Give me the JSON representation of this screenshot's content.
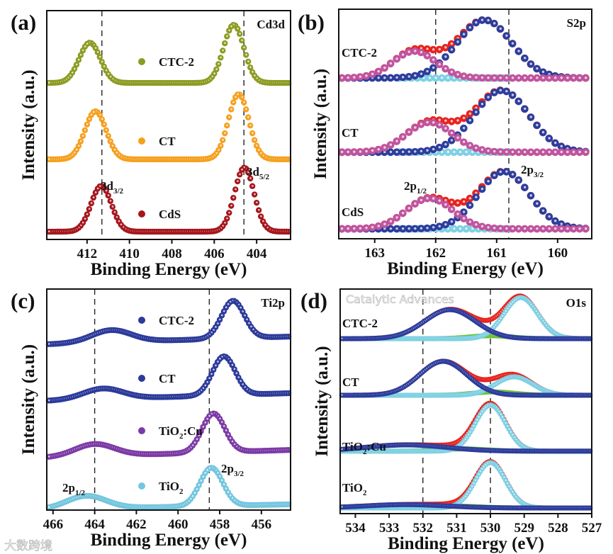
{
  "watermarks": {
    "left": "大数跨境",
    "right": "Catalytic Advances"
  },
  "chart_data": [
    {
      "panel": "(a)",
      "type": "scatter",
      "title": "Cd3d",
      "xlabel": "Binding Energy (eV)",
      "ylabel": "Intensity (a.u.)",
      "xlim": [
        413.9,
        402.4
      ],
      "ylim": [
        0,
        10
      ],
      "step": 0.1,
      "xticks": [
        412,
        410,
        408,
        406,
        404
      ],
      "reference_lines": [
        411.3,
        404.6
      ],
      "legend_style": "dot",
      "series": [
        {
          "label": {
            "main": "CTC-2"
          },
          "color": "#8c9c22",
          "offset": 6.84,
          "slope": 0.0,
          "peaks": [
            {
              "center": 411.87,
              "height": 1.76,
              "sigma": 0.5
            },
            {
              "center": 405.08,
              "height": 2.54,
              "sigma": 0.48
            }
          ]
        },
        {
          "label": {
            "main": "CT"
          },
          "color": "#f5a01e",
          "offset": 3.5,
          "slope": 0.0,
          "peaks": [
            {
              "center": 411.6,
              "height": 2.1,
              "sigma": 0.5
            },
            {
              "center": 404.85,
              "height": 2.85,
              "sigma": 0.48
            }
          ]
        },
        {
          "label": {
            "main": "CdS"
          },
          "color": "#a5161c",
          "offset": 0.34,
          "slope": 0.0,
          "peaks": [
            {
              "center": 411.33,
              "height": 2.0,
              "sigma": 0.48
            },
            {
              "center": 404.58,
              "height": 2.8,
              "sigma": 0.46
            }
          ]
        }
      ],
      "annotations": [
        {
          "main": "3d",
          "sub": "3/2"
        },
        {
          "main": "3d",
          "sub": "5/2"
        }
      ]
    },
    {
      "panel": "(b)",
      "type": "scatter",
      "title": "S2p",
      "xlabel": "Binding Energy (eV)",
      "ylabel": "Intensity (a.u.)",
      "xlim": [
        163.59,
        159.44
      ],
      "ylim": [
        0,
        10
      ],
      "step": 0.1,
      "xticks": [
        163,
        162,
        161,
        160
      ],
      "reference_lines": [
        162.0,
        160.8
      ],
      "legend_style": "inline",
      "envelope_color": "#e8231e",
      "background": {
        "color": "#7fd0e4",
        "range": [
          162.6,
          160.8
        ]
      },
      "series": [
        {
          "label": {
            "main": "CTC-2"
          },
          "offset": 7.0,
          "components": [
            {
              "color": "#2d3d9c",
              "center": 161.2,
              "height": 2.53,
              "sigma": 0.45
            },
            {
              "color": "#c0549e",
              "center": 162.35,
              "height": 1.17,
              "sigma": 0.35
            }
          ]
        },
        {
          "label": {
            "main": "CT"
          },
          "offset": 3.77,
          "components": [
            {
              "color": "#2d3d9c",
              "center": 160.92,
              "height": 2.69,
              "sigma": 0.45
            },
            {
              "color": "#c0549e",
              "center": 162.1,
              "height": 1.3,
              "sigma": 0.38
            }
          ]
        },
        {
          "label": {
            "main": "CdS"
          },
          "offset": 0.43,
          "components": [
            {
              "color": "#2d3d9c",
              "center": 160.88,
              "height": 2.5,
              "sigma": 0.42
            },
            {
              "color": "#c0549e",
              "center": 162.1,
              "height": 1.33,
              "sigma": 0.38
            }
          ]
        }
      ],
      "annotations": [
        {
          "main": "2p",
          "sub": "1/2"
        },
        {
          "main": "2p",
          "sub": "3/2"
        }
      ]
    },
    {
      "panel": "(c)",
      "type": "scatter",
      "title": "Ti2p",
      "xlabel": "Binding Energy (eV)",
      "ylabel": "Intensity (a.u.)",
      "xlim": [
        466.3,
        454.6
      ],
      "ylim": [
        0,
        10
      ],
      "step": 0.1,
      "xticks": [
        466,
        464,
        462,
        460,
        458,
        456
      ],
      "reference_lines": [
        464.0,
        458.5
      ],
      "legend_style": "dot",
      "series": [
        {
          "label": {
            "main": "CTC-2"
          },
          "color": "#2c3a9a",
          "offset": 7.85,
          "slope": -0.03,
          "peaks": [
            {
              "center": 463.2,
              "height": 0.55,
              "sigma": 0.95
            },
            {
              "center": 457.36,
              "height": 1.7,
              "sigma": 0.55
            }
          ]
        },
        {
          "label": {
            "main": "CT"
          },
          "color": "#2c3a9a",
          "offset": 5.29,
          "slope": -0.03,
          "peaks": [
            {
              "center": 463.6,
              "height": 0.48,
              "sigma": 0.95
            },
            {
              "center": 457.8,
              "height": 1.76,
              "sigma": 0.55
            }
          ]
        },
        {
          "label": {
            "main": "TiO",
            "sub": "2",
            "rest": ":Cu"
          },
          "color": "#7c3aa6",
          "offset": 2.72,
          "slope": -0.03,
          "peaks": [
            {
              "center": 464.0,
              "height": 0.55,
              "sigma": 0.95
            },
            {
              "center": 458.3,
              "height": 1.76,
              "sigma": 0.55
            }
          ]
        },
        {
          "label": {
            "main": "TiO",
            "sub": "2"
          },
          "color": "#74c6de",
          "offset": 0.26,
          "slope": -0.02,
          "peaks": [
            {
              "center": 464.4,
              "height": 0.58,
              "sigma": 0.95
            },
            {
              "center": 458.4,
              "height": 1.73,
              "sigma": 0.55
            }
          ]
        }
      ],
      "annotations": [
        {
          "main": "2p",
          "sub": "1/2"
        },
        {
          "main": "2p",
          "sub": "3/2"
        }
      ]
    },
    {
      "panel": "(d)",
      "type": "scatter",
      "title": "O1s",
      "xlabel": "Binding Energy (eV)",
      "ylabel": "Intensity (a.u.)",
      "xlim": [
        534.45,
        527.0
      ],
      "ylim": [
        0,
        10
      ],
      "step": 0.05,
      "xticks": [
        534,
        533,
        532,
        531,
        530,
        529,
        528,
        527
      ],
      "reference_lines": [
        532.0,
        530.0
      ],
      "legend_style": "inline",
      "envelope_color": "#e8231e",
      "series": [
        {
          "label": {
            "main": "CTC-2"
          },
          "offset": 7.79,
          "components": [
            {
              "color": "#6cc23a",
              "center": 530.0,
              "height": 0.13,
              "sigma": 0.6
            },
            {
              "color": "#7fd0e4",
              "center": 529.1,
              "height": 1.83,
              "sigma": 0.5
            },
            {
              "color": "#2d3d9c",
              "center": 531.2,
              "height": 1.29,
              "sigma": 0.75
            }
          ]
        },
        {
          "label": {
            "main": "CT"
          },
          "offset": 5.27,
          "components": [
            {
              "color": "#6cc23a",
              "center": 529.9,
              "height": 0.15,
              "sigma": 0.6
            },
            {
              "color": "#7fd0e4",
              "center": 529.3,
              "height": 0.82,
              "sigma": 0.55
            },
            {
              "color": "#2d3d9c",
              "center": 531.4,
              "height": 1.51,
              "sigma": 0.7
            }
          ]
        },
        {
          "label": {
            "main": "TiO",
            "sub": "2",
            "rest": ":Cu"
          },
          "offset": 2.78,
          "components": [
            {
              "color": "#6cc23a",
              "center": 530.8,
              "height": 0.1,
              "sigma": 0.7
            },
            {
              "color": "#7fd0e4",
              "center": 530.0,
              "height": 2.05,
              "sigma": 0.45
            },
            {
              "color": "#2d3d9c",
              "center": 532.5,
              "height": 0.28,
              "sigma": 1.2
            }
          ]
        },
        {
          "label": {
            "main": "TiO",
            "sub": "2"
          },
          "offset": 0.25,
          "components": [
            {
              "color": "#6cc23a",
              "center": 531.0,
              "height": 0.08,
              "sigma": 0.7
            },
            {
              "color": "#7fd0e4",
              "center": 530.0,
              "height": 2.02,
              "sigma": 0.45
            },
            {
              "color": "#2d3d9c",
              "center": 532.5,
              "height": 0.15,
              "sigma": 1.2
            }
          ]
        }
      ],
      "annotations": []
    }
  ]
}
